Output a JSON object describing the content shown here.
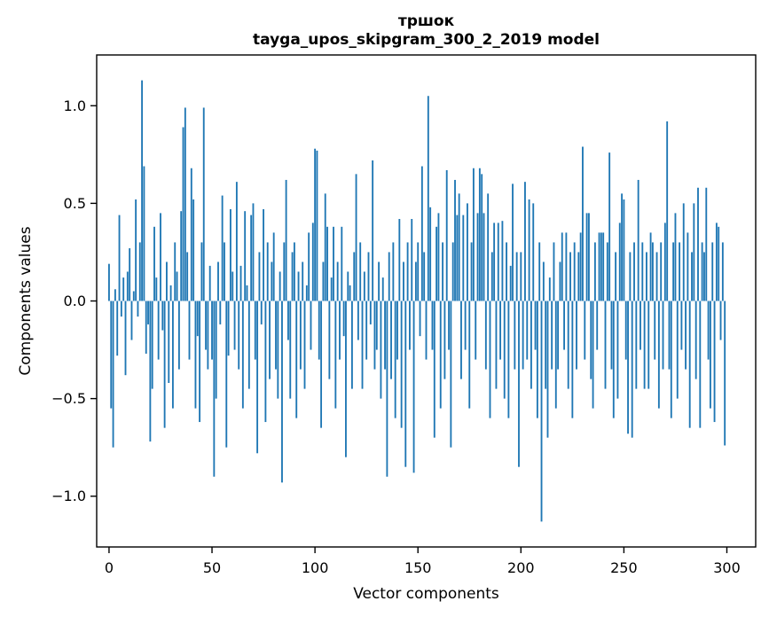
{
  "chart_data": {
    "type": "bar",
    "title": "тршок",
    "subtitle": "tayga_upos_skipgram_300_2_2019 model",
    "xlabel": "Vector components",
    "ylabel": "Components values",
    "bar_color": "#1f77b4",
    "axis_color": "#000000",
    "background_color": "#ffffff",
    "legend": "none",
    "grid": false,
    "xlim": [
      -6,
      314
    ],
    "ylim": [
      -1.26,
      1.26
    ],
    "x_ticks": {
      "values": [
        0,
        50,
        100,
        150,
        200,
        250,
        300
      ],
      "labels": [
        "0",
        "50",
        "100",
        "150",
        "200",
        "250",
        "300"
      ]
    },
    "y_ticks": {
      "values": [
        1.0,
        0.5,
        0.0,
        -0.5,
        -1.0
      ],
      "labels": [
        "1.0",
        "0.5",
        "0.0",
        "−0.5",
        "−1.0"
      ]
    },
    "x_start": 0,
    "n_components": 300,
    "values": [
      0.19,
      -0.55,
      -0.75,
      0.06,
      -0.28,
      0.44,
      -0.08,
      0.12,
      -0.38,
      0.15,
      0.27,
      -0.2,
      0.05,
      0.52,
      -0.08,
      0.3,
      1.13,
      0.69,
      -0.27,
      -0.12,
      -0.72,
      -0.45,
      0.38,
      0.12,
      -0.3,
      0.45,
      -0.15,
      -0.65,
      0.2,
      -0.42,
      0.08,
      -0.55,
      0.3,
      0.15,
      -0.35,
      0.46,
      0.89,
      0.99,
      0.25,
      -0.3,
      0.68,
      0.52,
      -0.55,
      -0.18,
      -0.62,
      0.3,
      0.99,
      -0.25,
      -0.35,
      0.18,
      -0.3,
      -0.9,
      -0.5,
      0.2,
      -0.12,
      0.54,
      0.3,
      -0.75,
      -0.28,
      0.47,
      0.15,
      -0.25,
      0.61,
      -0.35,
      0.18,
      -0.55,
      0.46,
      0.08,
      -0.45,
      0.44,
      0.5,
      -0.3,
      -0.78,
      0.25,
      -0.12,
      0.47,
      -0.62,
      0.3,
      -0.4,
      0.2,
      0.35,
      -0.35,
      -0.5,
      0.15,
      -0.93,
      0.3,
      0.62,
      -0.2,
      -0.5,
      0.25,
      0.3,
      -0.6,
      0.15,
      -0.35,
      0.2,
      -0.45,
      0.08,
      0.35,
      -0.25,
      0.4,
      0.78,
      0.77,
      -0.3,
      -0.65,
      0.2,
      0.55,
      0.38,
      -0.4,
      0.12,
      0.38,
      -0.55,
      0.2,
      -0.3,
      0.38,
      -0.18,
      -0.8,
      0.15,
      0.08,
      -0.45,
      0.25,
      0.65,
      -0.2,
      0.3,
      -0.45,
      0.15,
      -0.3,
      0.25,
      -0.12,
      0.72,
      -0.35,
      -0.25,
      0.2,
      -0.5,
      0.12,
      -0.35,
      -0.9,
      0.25,
      -0.4,
      0.3,
      -0.6,
      -0.3,
      0.42,
      -0.65,
      0.2,
      -0.85,
      0.3,
      -0.25,
      0.42,
      -0.88,
      0.2,
      0.3,
      -0.18,
      0.69,
      0.25,
      -0.3,
      1.05,
      0.48,
      -0.25,
      -0.7,
      0.38,
      0.45,
      -0.55,
      0.3,
      -0.4,
      0.67,
      -0.25,
      -0.75,
      0.3,
      0.62,
      0.44,
      0.55,
      -0.4,
      0.44,
      -0.25,
      0.5,
      -0.55,
      0.3,
      0.68,
      -0.3,
      0.45,
      0.68,
      0.65,
      0.45,
      -0.35,
      0.55,
      -0.6,
      0.25,
      0.4,
      -0.45,
      0.4,
      -0.3,
      0.41,
      -0.5,
      0.3,
      -0.6,
      0.18,
      0.6,
      -0.35,
      0.25,
      -0.85,
      0.25,
      -0.35,
      0.61,
      -0.3,
      0.52,
      -0.45,
      0.5,
      -0.25,
      -0.6,
      0.3,
      -1.13,
      0.2,
      -0.45,
      -0.7,
      0.12,
      -0.35,
      0.3,
      -0.55,
      -0.35,
      0.2,
      0.35,
      -0.25,
      0.35,
      -0.45,
      0.25,
      -0.6,
      0.3,
      -0.35,
      0.25,
      0.35,
      0.79,
      -0.3,
      0.45,
      0.45,
      -0.4,
      -0.55,
      0.3,
      -0.25,
      0.35,
      0.35,
      0.35,
      -0.45,
      0.3,
      0.76,
      -0.35,
      -0.6,
      0.25,
      -0.5,
      0.4,
      0.55,
      0.52,
      -0.3,
      -0.68,
      0.25,
      -0.7,
      0.3,
      -0.45,
      0.62,
      -0.25,
      0.3,
      -0.45,
      0.25,
      -0.45,
      0.35,
      0.3,
      -0.3,
      0.25,
      -0.55,
      0.3,
      -0.35,
      0.4,
      0.92,
      -0.35,
      -0.6,
      0.3,
      0.45,
      -0.5,
      0.3,
      -0.25,
      0.5,
      -0.35,
      0.35,
      -0.65,
      0.25,
      0.5,
      -0.4,
      0.58,
      -0.65,
      0.3,
      0.25,
      0.58,
      -0.3,
      -0.55,
      0.3,
      -0.62,
      0.4,
      0.38,
      -0.2,
      0.3,
      -0.74
    ]
  }
}
